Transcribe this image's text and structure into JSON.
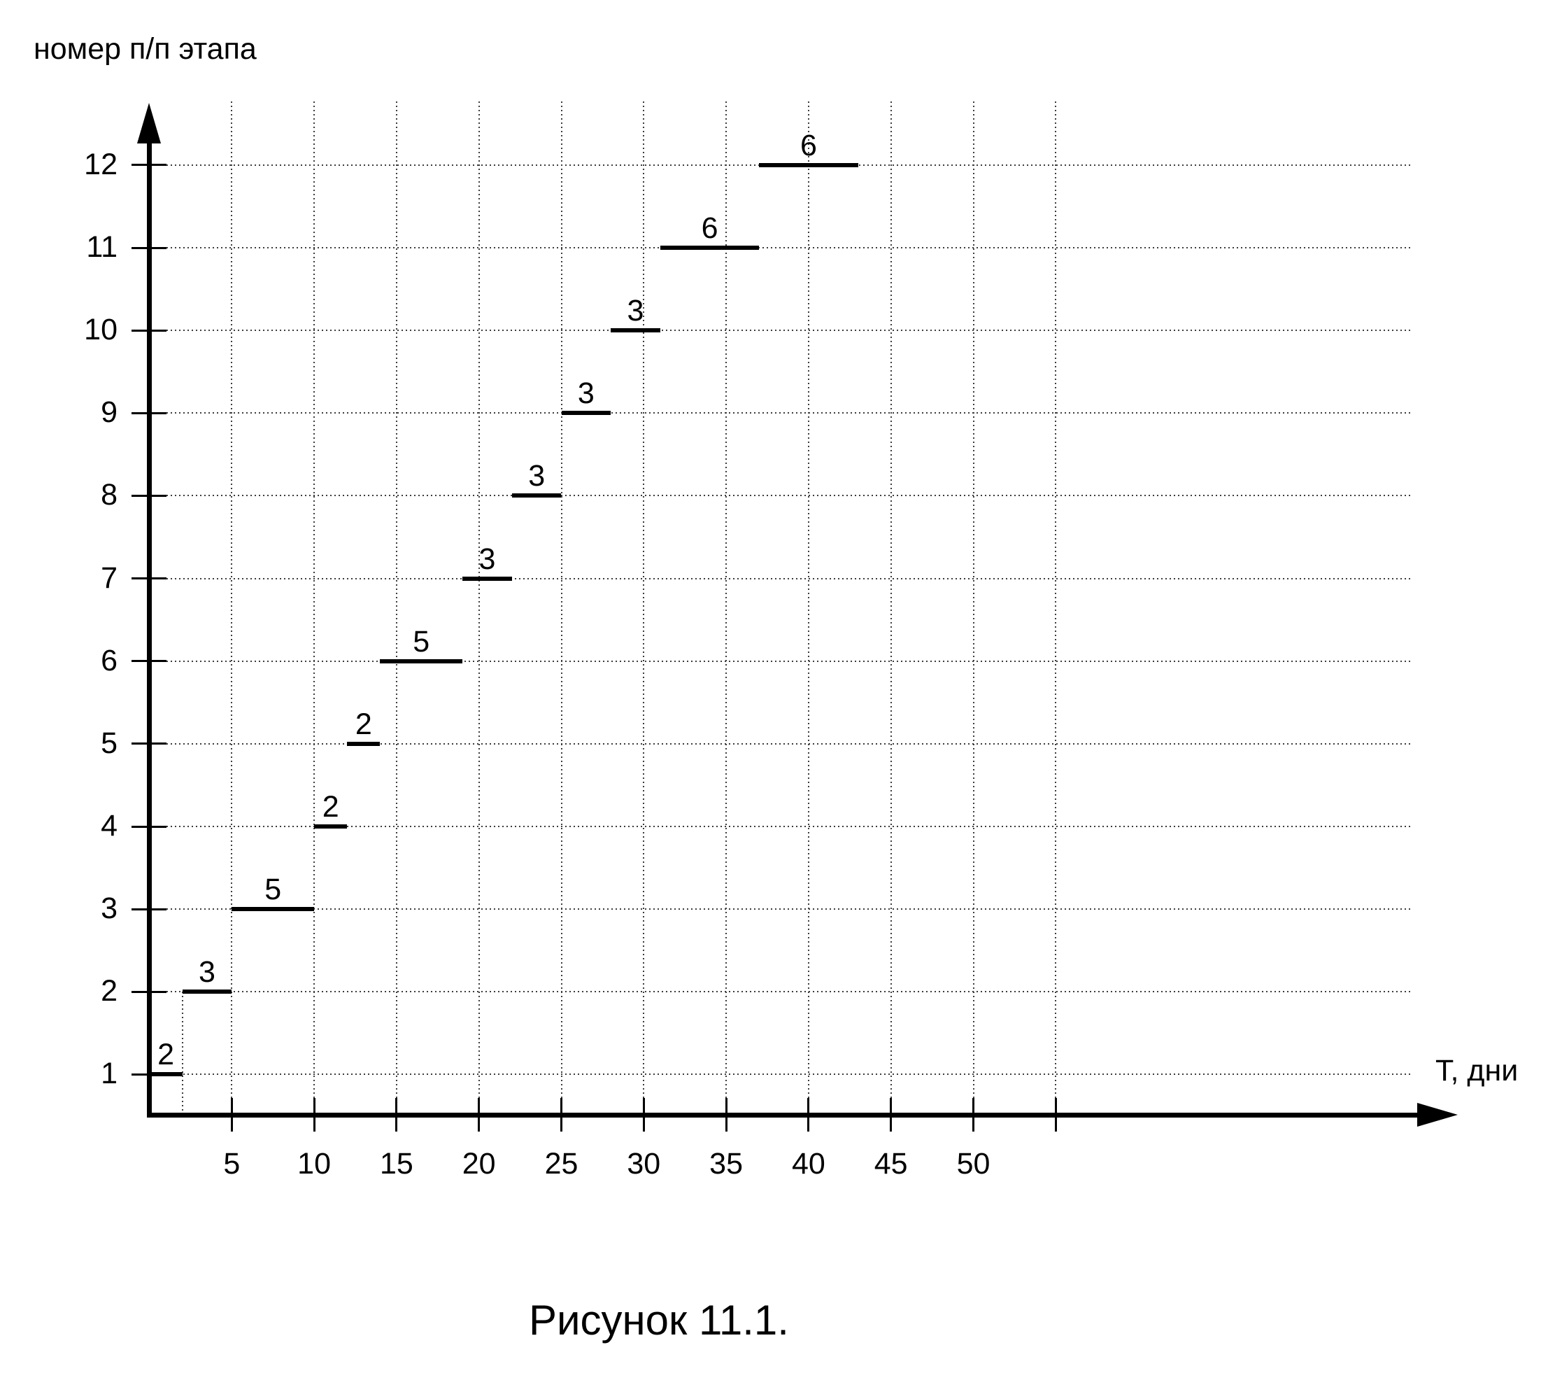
{
  "figure": {
    "y_axis_title": "номер п/п этапа",
    "x_axis_title": "Т, дни",
    "caption": "Рисунок 11.1."
  },
  "chart_data": {
    "type": "bar",
    "variant": "gantt-stepped-schedule",
    "title": "Рисунок 11.1.",
    "xlabel": "Т, дни",
    "ylabel": "номер п/п этапа",
    "x_unit": "days",
    "y_unit": "stage number",
    "xlim": [
      0,
      57
    ],
    "ylim": [
      0,
      12.5
    ],
    "grid": {
      "style": "dotted",
      "vertical_days": [
        5,
        10,
        15,
        20,
        25,
        30,
        35,
        40,
        45,
        50,
        55
      ],
      "horizontal_stages": [
        1,
        2,
        3,
        4,
        5,
        6,
        7,
        8,
        9,
        10,
        11,
        12
      ]
    },
    "x_tick_labeled_days": [
      5,
      10,
      15,
      20,
      25,
      30,
      35,
      40,
      45,
      50
    ],
    "x_tick_unlabeled_days": [
      55
    ],
    "y_tick_stages": [
      1,
      2,
      3,
      4,
      5,
      6,
      7,
      8,
      9,
      10,
      11,
      12
    ],
    "bars": [
      {
        "stage": 1,
        "start_day": 0,
        "duration_days": 2,
        "label": "2"
      },
      {
        "stage": 2,
        "start_day": 2,
        "duration_days": 3,
        "label": "3"
      },
      {
        "stage": 3,
        "start_day": 5,
        "duration_days": 5,
        "label": "5"
      },
      {
        "stage": 4,
        "start_day": 10,
        "duration_days": 2,
        "label": "2"
      },
      {
        "stage": 5,
        "start_day": 12,
        "duration_days": 2,
        "label": "2"
      },
      {
        "stage": 6,
        "start_day": 14,
        "duration_days": 5,
        "label": "5"
      },
      {
        "stage": 7,
        "start_day": 19,
        "duration_days": 3,
        "label": "3"
      },
      {
        "stage": 8,
        "start_day": 22,
        "duration_days": 3,
        "label": "3"
      },
      {
        "stage": 9,
        "start_day": 25,
        "duration_days": 3,
        "label": "3"
      },
      {
        "stage": 10,
        "start_day": 28,
        "duration_days": 3,
        "label": "3"
      },
      {
        "stage": 11,
        "start_day": 31,
        "duration_days": 6,
        "label": "6"
      },
      {
        "stage": 12,
        "start_day": 37,
        "duration_days": 6,
        "label": "6"
      }
    ],
    "drop_lines": [
      {
        "day": 2,
        "from_stage": 2,
        "to": "x-axis",
        "style": "dotted"
      }
    ],
    "colors": {
      "background": "#ffffff",
      "axis": "#000000",
      "bar": "#000000",
      "grid_dots": "#3c3c3c",
      "text": "#000000"
    },
    "legend": "none"
  }
}
